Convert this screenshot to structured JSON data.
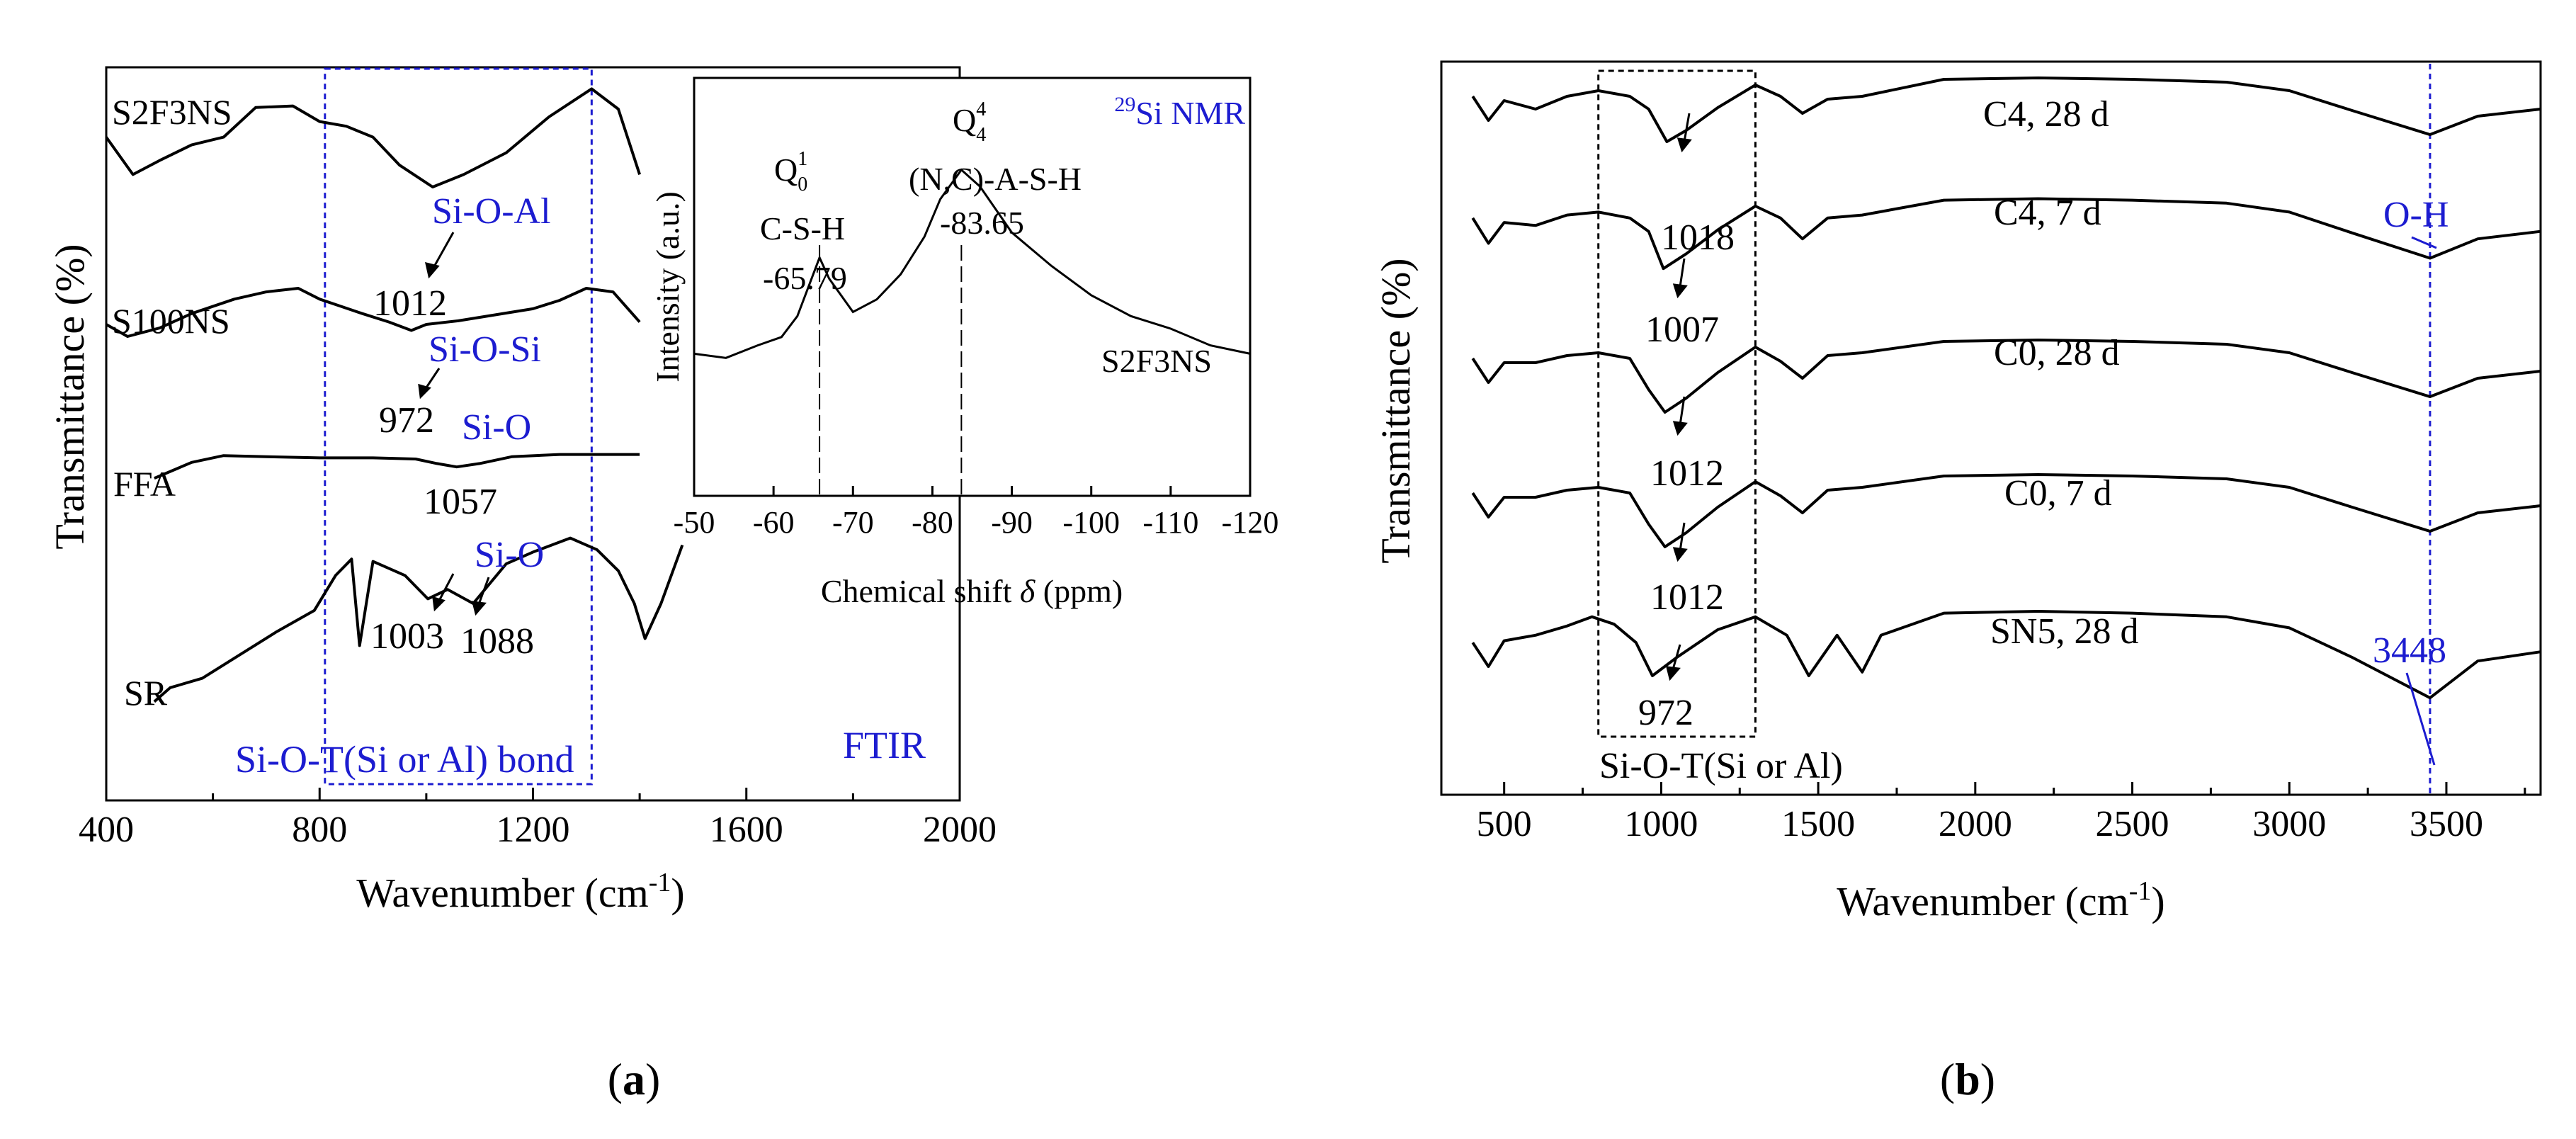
{
  "colors": {
    "ink": "#000000",
    "accent": "#1c1cd0",
    "background": "#ffffff"
  },
  "panel_labels": {
    "a": "a",
    "b": "b"
  },
  "chart_data": [
    {
      "id": "panel-a-ftir",
      "type": "line",
      "title": "FTIR",
      "xlabel": "Wavenumber (cm⁻¹)",
      "ylabel": "Transmittance (%)",
      "xlim": [
        400,
        2000
      ],
      "xticks": [
        400,
        800,
        1200,
        1600,
        2000
      ],
      "y_units": "arbitrary (stacked, offset)",
      "series": [
        {
          "name": "S2F3NS",
          "points": [
            [
              400,
              0.62
            ],
            [
              450,
              0.38
            ],
            [
              500,
              0.47
            ],
            [
              560,
              0.57
            ],
            [
              620,
              0.62
            ],
            [
              680,
              0.81
            ],
            [
              750,
              0.82
            ],
            [
              800,
              0.72
            ],
            [
              850,
              0.69
            ],
            [
              900,
              0.62
            ],
            [
              950,
              0.44
            ],
            [
              1012,
              0.3
            ],
            [
              1070,
              0.38
            ],
            [
              1150,
              0.52
            ],
            [
              1230,
              0.75
            ],
            [
              1310,
              0.93
            ],
            [
              1360,
              0.8
            ],
            [
              1400,
              0.38
            ]
          ]
        },
        {
          "name": "S100NS",
          "points": [
            [
              400,
              0.6
            ],
            [
              440,
              0.5
            ],
            [
              500,
              0.57
            ],
            [
              560,
              0.69
            ],
            [
              640,
              0.81
            ],
            [
              700,
              0.87
            ],
            [
              760,
              0.9
            ],
            [
              800,
              0.81
            ],
            [
              840,
              0.75
            ],
            [
              880,
              0.69
            ],
            [
              930,
              0.62
            ],
            [
              972,
              0.55
            ],
            [
              1000,
              0.6
            ],
            [
              1060,
              0.63
            ],
            [
              1130,
              0.68
            ],
            [
              1200,
              0.73
            ],
            [
              1250,
              0.8
            ],
            [
              1300,
              0.9
            ],
            [
              1350,
              0.87
            ],
            [
              1400,
              0.62
            ]
          ]
        },
        {
          "name": "FFA",
          "points": [
            [
              490,
              0.28
            ],
            [
              520,
              0.34
            ],
            [
              560,
              0.42
            ],
            [
              620,
              0.48
            ],
            [
              700,
              0.47
            ],
            [
              800,
              0.46
            ],
            [
              900,
              0.46
            ],
            [
              980,
              0.45
            ],
            [
              1020,
              0.41
            ],
            [
              1057,
              0.38
            ],
            [
              1100,
              0.41
            ],
            [
              1160,
              0.47
            ],
            [
              1250,
              0.49
            ],
            [
              1310,
              0.49
            ],
            [
              1400,
              0.49
            ]
          ]
        },
        {
          "name": "SR",
          "points": [
            [
              490,
              0.18
            ],
            [
              520,
              0.24
            ],
            [
              580,
              0.28
            ],
            [
              650,
              0.38
            ],
            [
              720,
              0.48
            ],
            [
              790,
              0.57
            ],
            [
              830,
              0.72
            ],
            [
              860,
              0.79
            ],
            [
              875,
              0.42
            ],
            [
              900,
              0.78
            ],
            [
              960,
              0.72
            ],
            [
              1003,
              0.62
            ],
            [
              1040,
              0.66
            ],
            [
              1088,
              0.6
            ],
            [
              1150,
              0.77
            ],
            [
              1200,
              0.82
            ],
            [
              1270,
              0.88
            ],
            [
              1320,
              0.83
            ],
            [
              1360,
              0.74
            ],
            [
              1390,
              0.6
            ],
            [
              1410,
              0.45
            ],
            [
              1440,
              0.6
            ],
            [
              1480,
              0.85
            ]
          ]
        }
      ],
      "series_labels": [
        "S2F3NS",
        "S100NS",
        "FFA",
        "SR"
      ],
      "annotations": [
        {
          "label": "Si-O-Al",
          "value": "1012",
          "color": "accent"
        },
        {
          "label": "Si-O-Si",
          "value": "972",
          "color": "accent"
        },
        {
          "label": "Si-O",
          "value": "1057",
          "color": "accent"
        },
        {
          "label": "Si-O",
          "values": [
            "1003",
            "1088"
          ],
          "color": "accent"
        }
      ],
      "region": {
        "label": "Si-O-T(Si or Al) bond",
        "x_range": [
          810,
          1310
        ]
      },
      "inset": {
        "type": "line",
        "title": "29Si NMR",
        "title_sup": "29",
        "title_text": "Si NMR",
        "xlabel_prefix": "Chemical shift ",
        "xlabel_delta": "δ",
        "xlabel_suffix": " (ppm)",
        "ylabel": "Intensity (a.u.)",
        "xlim": [
          -50,
          -120
        ],
        "xticks": [
          "-50",
          "-60",
          "-70",
          "-80",
          "-90",
          "-100",
          "-110",
          "-120"
        ],
        "series_name": "S2F3NS",
        "points": [
          [
            -50,
            0.34
          ],
          [
            -54,
            0.33
          ],
          [
            -58,
            0.36
          ],
          [
            -61,
            0.38
          ],
          [
            -63,
            0.43
          ],
          [
            -65.79,
            0.57
          ],
          [
            -67,
            0.52
          ],
          [
            -70,
            0.44
          ],
          [
            -73,
            0.47
          ],
          [
            -76,
            0.53
          ],
          [
            -79,
            0.62
          ],
          [
            -81,
            0.71
          ],
          [
            -83.65,
            0.78
          ],
          [
            -86,
            0.74
          ],
          [
            -90,
            0.63
          ],
          [
            -95,
            0.55
          ],
          [
            -100,
            0.48
          ],
          [
            -105,
            0.43
          ],
          [
            -110,
            0.4
          ],
          [
            -115,
            0.36
          ],
          [
            -120,
            0.34
          ]
        ],
        "peaks": [
          {
            "shift": -65.79,
            "value": "-65.79",
            "species": "C-S-H",
            "q_base": "Q",
            "q_sub": "0",
            "q_sup": "1"
          },
          {
            "shift": -83.65,
            "value": "-83.65",
            "species": "(N,C)-A-S-H",
            "q_base": "Q",
            "q_sub": "4",
            "q_sup": "4"
          }
        ]
      }
    },
    {
      "id": "panel-b-ftir",
      "type": "line",
      "xlabel": "Wavenumber (cm⁻¹)",
      "ylabel": "Transmittance (%)",
      "xlim": [
        300,
        3800
      ],
      "xticks": [
        500,
        1000,
        1500,
        2000,
        2500,
        3000,
        3500
      ],
      "y_units": "arbitrary (stacked, offset)",
      "series": [
        {
          "name": "C4, 28 d",
          "minimum": "1018",
          "points": [
            [
              400,
              0.82
            ],
            [
              450,
              0.65
            ],
            [
              500,
              0.79
            ],
            [
              600,
              0.73
            ],
            [
              700,
              0.82
            ],
            [
              800,
              0.86
            ],
            [
              900,
              0.82
            ],
            [
              960,
              0.73
            ],
            [
              1018,
              0.5
            ],
            [
              1080,
              0.58
            ],
            [
              1180,
              0.74
            ],
            [
              1300,
              0.9
            ],
            [
              1380,
              0.82
            ],
            [
              1450,
              0.7
            ],
            [
              1530,
              0.8
            ],
            [
              1640,
              0.82
            ],
            [
              1900,
              0.94
            ],
            [
              2200,
              0.95
            ],
            [
              2500,
              0.94
            ],
            [
              2800,
              0.92
            ],
            [
              3000,
              0.86
            ],
            [
              3200,
              0.72
            ],
            [
              3448,
              0.55
            ],
            [
              3600,
              0.68
            ],
            [
              3800,
              0.73
            ]
          ]
        },
        {
          "name": "C4, 7 d",
          "minimum": "1007",
          "points": [
            [
              400,
              0.82
            ],
            [
              450,
              0.65
            ],
            [
              500,
              0.79
            ],
            [
              600,
              0.77
            ],
            [
              700,
              0.84
            ],
            [
              800,
              0.86
            ],
            [
              900,
              0.82
            ],
            [
              960,
              0.73
            ],
            [
              1007,
              0.48
            ],
            [
              1080,
              0.58
            ],
            [
              1180,
              0.74
            ],
            [
              1300,
              0.9
            ],
            [
              1380,
              0.82
            ],
            [
              1450,
              0.68
            ],
            [
              1530,
              0.82
            ],
            [
              1640,
              0.84
            ],
            [
              1900,
              0.94
            ],
            [
              2200,
              0.95
            ],
            [
              2500,
              0.94
            ],
            [
              2800,
              0.92
            ],
            [
              3000,
              0.86
            ],
            [
              3200,
              0.72
            ],
            [
              3448,
              0.55
            ],
            [
              3600,
              0.68
            ],
            [
              3800,
              0.73
            ]
          ]
        },
        {
          "name": "C0, 28 d",
          "minimum": "1012",
          "points": [
            [
              400,
              0.82
            ],
            [
              450,
              0.65
            ],
            [
              500,
              0.79
            ],
            [
              600,
              0.79
            ],
            [
              700,
              0.84
            ],
            [
              800,
              0.86
            ],
            [
              900,
              0.82
            ],
            [
              960,
              0.6
            ],
            [
              1012,
              0.44
            ],
            [
              1080,
              0.54
            ],
            [
              1180,
              0.72
            ],
            [
              1300,
              0.9
            ],
            [
              1380,
              0.8
            ],
            [
              1450,
              0.68
            ],
            [
              1530,
              0.84
            ],
            [
              1640,
              0.86
            ],
            [
              1900,
              0.94
            ],
            [
              2200,
              0.95
            ],
            [
              2500,
              0.94
            ],
            [
              2800,
              0.92
            ],
            [
              3000,
              0.86
            ],
            [
              3200,
              0.72
            ],
            [
              3448,
              0.55
            ],
            [
              3600,
              0.68
            ],
            [
              3800,
              0.73
            ]
          ]
        },
        {
          "name": "C0, 7 d",
          "minimum": "1012",
          "points": [
            [
              400,
              0.82
            ],
            [
              450,
              0.65
            ],
            [
              500,
              0.79
            ],
            [
              600,
              0.79
            ],
            [
              700,
              0.84
            ],
            [
              800,
              0.86
            ],
            [
              900,
              0.82
            ],
            [
              960,
              0.6
            ],
            [
              1012,
              0.44
            ],
            [
              1080,
              0.54
            ],
            [
              1180,
              0.72
            ],
            [
              1300,
              0.9
            ],
            [
              1380,
              0.8
            ],
            [
              1450,
              0.68
            ],
            [
              1530,
              0.84
            ],
            [
              1640,
              0.86
            ],
            [
              1900,
              0.94
            ],
            [
              2200,
              0.95
            ],
            [
              2500,
              0.94
            ],
            [
              2800,
              0.92
            ],
            [
              3000,
              0.86
            ],
            [
              3200,
              0.72
            ],
            [
              3448,
              0.55
            ],
            [
              3600,
              0.68
            ],
            [
              3800,
              0.73
            ]
          ]
        },
        {
          "name": "SN5, 28 d",
          "minimum": "972",
          "points": [
            [
              400,
              0.78
            ],
            [
              450,
              0.65
            ],
            [
              500,
              0.79
            ],
            [
              600,
              0.82
            ],
            [
              700,
              0.87
            ],
            [
              780,
              0.92
            ],
            [
              850,
              0.88
            ],
            [
              920,
              0.78
            ],
            [
              972,
              0.6
            ],
            [
              1050,
              0.7
            ],
            [
              1180,
              0.85
            ],
            [
              1300,
              0.92
            ],
            [
              1400,
              0.82
            ],
            [
              1470,
              0.6
            ],
            [
              1560,
              0.82
            ],
            [
              1640,
              0.62
            ],
            [
              1700,
              0.82
            ],
            [
              1900,
              0.94
            ],
            [
              2200,
              0.95
            ],
            [
              2500,
              0.94
            ],
            [
              2800,
              0.92
            ],
            [
              3000,
              0.86
            ],
            [
              3200,
              0.7
            ],
            [
              3448,
              0.48
            ],
            [
              3600,
              0.68
            ],
            [
              3800,
              0.73
            ]
          ]
        }
      ],
      "series_labels": [
        "C4, 28 d",
        "C4, 7 d",
        "C0, 28 d",
        "C0, 7 d",
        "SN5, 28 d"
      ],
      "minima_labels": [
        "1018",
        "1007",
        "1012",
        "1012",
        "972"
      ],
      "annotations": [
        {
          "label": "O-H",
          "color": "accent"
        },
        {
          "label": "3448",
          "color": "accent"
        }
      ],
      "region": {
        "label": "Si-O-T(Si or Al)",
        "x_range": [
          800,
          1300
        ]
      },
      "reference_line": {
        "x": 3448
      }
    }
  ]
}
